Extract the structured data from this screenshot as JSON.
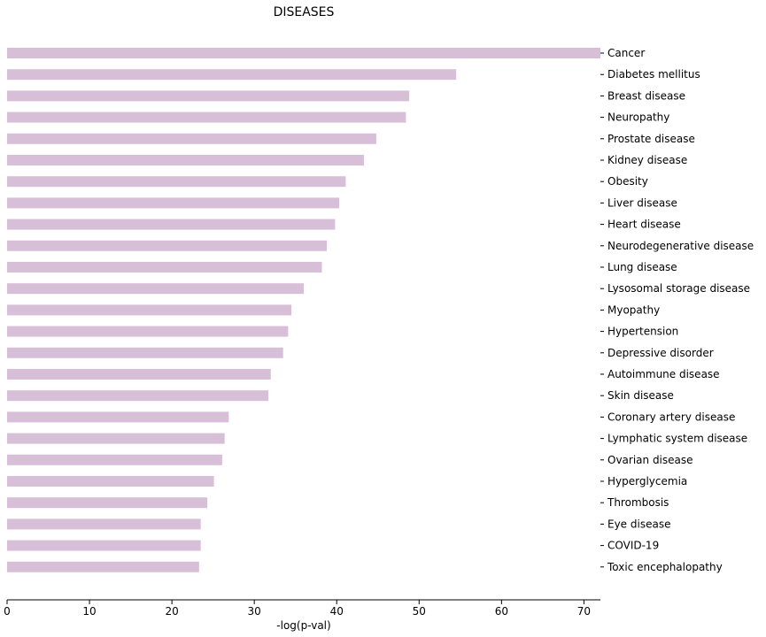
{
  "chart_data": {
    "type": "bar",
    "orientation": "horizontal",
    "title": "DISEASES",
    "xlabel": "-log(p-val)",
    "ylabel": "",
    "xlim": [
      0,
      72
    ],
    "x_ticks": [
      0,
      10,
      20,
      30,
      40,
      50,
      60,
      70
    ],
    "grid": false,
    "bar_color": "#d8bfd8",
    "category_axis_side": "right",
    "categories": [
      "Cancer",
      "Diabetes mellitus",
      "Breast disease",
      "Neuropathy",
      "Prostate disease",
      "Kidney disease",
      "Obesity",
      "Liver disease",
      "Heart disease",
      "Neurodegenerative disease",
      "Lung disease",
      "Lysosomal storage disease",
      "Myopathy",
      "Hypertension",
      "Depressive disorder",
      "Autoimmune disease",
      "Skin disease",
      "Coronary artery disease",
      "Lymphatic system disease",
      "Ovarian disease",
      "Hyperglycemia",
      "Thrombosis",
      "Eye disease",
      "COVID-19",
      "Toxic encephalopathy"
    ],
    "values": [
      72.0,
      54.5,
      48.8,
      48.4,
      44.8,
      43.3,
      41.1,
      40.3,
      39.8,
      38.8,
      38.2,
      36.0,
      34.5,
      34.1,
      33.5,
      32.0,
      31.7,
      26.9,
      26.4,
      26.1,
      25.1,
      24.3,
      23.5,
      23.5,
      23.3
    ]
  }
}
